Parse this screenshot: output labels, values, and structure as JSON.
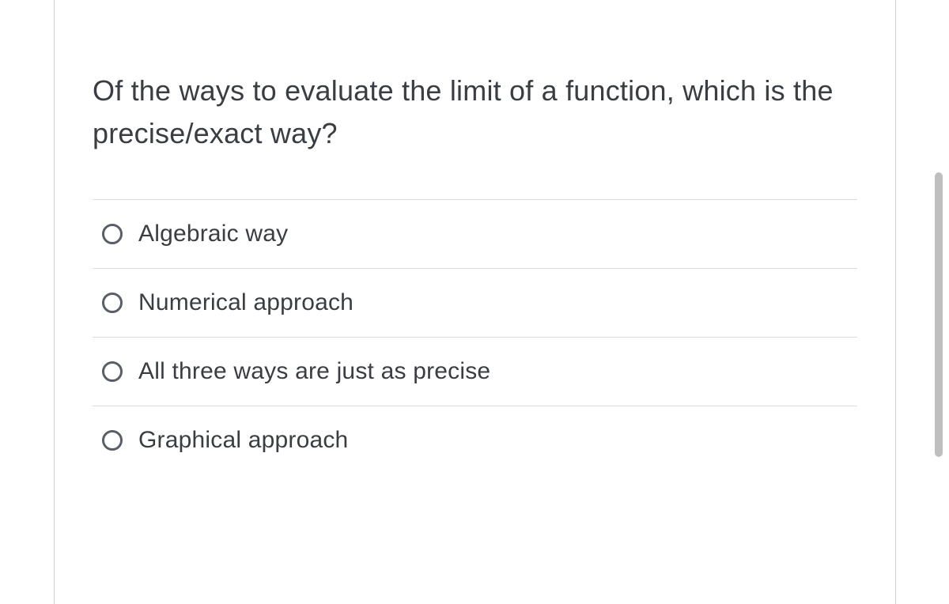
{
  "question": {
    "text": "Of the ways to evaluate the limit of a function, which is the precise/exact way?"
  },
  "options": [
    {
      "label": "Algebraic way"
    },
    {
      "label": "Numerical approach"
    },
    {
      "label": "All three ways are just as precise"
    },
    {
      "label": "Graphical approach"
    }
  ],
  "colors": {
    "border": "#d0d0d0",
    "divider": "#dcdcdc",
    "text": "#3a3d42",
    "radio_border": "#5a5e66",
    "scrollbar": "#bfbfbf",
    "background": "#ffffff"
  }
}
